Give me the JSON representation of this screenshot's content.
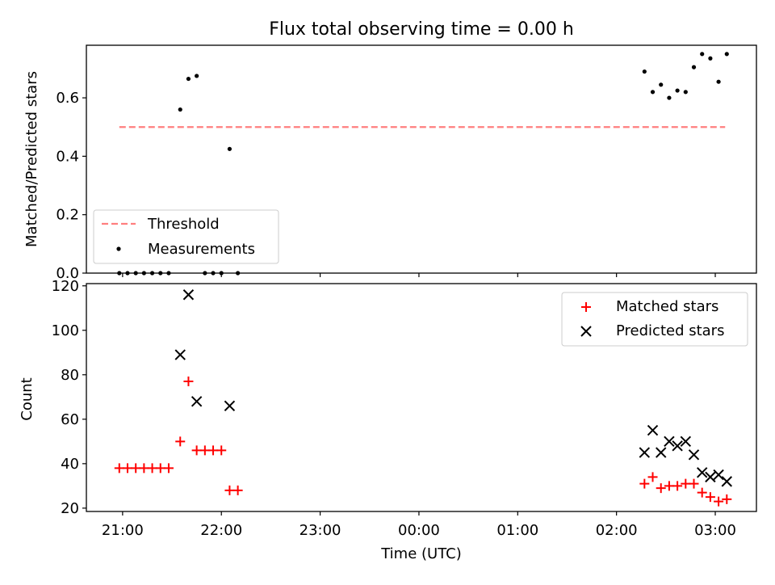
{
  "chart_data": [
    {
      "type": "scatter",
      "title": "Flux total observing time = 0.00 h",
      "xlabel": "",
      "ylabel": "Matched/Predicted stars",
      "ylim": [
        0,
        0.78
      ],
      "yticks": [
        "0.0",
        "0.2",
        "0.4",
        "0.6"
      ],
      "ytick_values": [
        0,
        0.2,
        0.4,
        0.6
      ],
      "threshold": {
        "name": "Threshold",
        "value": 0.5,
        "x_start": "20:58",
        "x_end": "03:06",
        "color": "#ff7f7f"
      },
      "series": [
        {
          "name": "Measurements",
          "color": "#000000",
          "points": [
            [
              "20:58",
              0
            ],
            [
              "21:03",
              0
            ],
            [
              "21:08",
              0
            ],
            [
              "21:13",
              0
            ],
            [
              "21:18",
              0
            ],
            [
              "21:23",
              0
            ],
            [
              "21:28",
              0
            ],
            [
              "21:35",
              0.56
            ],
            [
              "21:40",
              0.665
            ],
            [
              "21:45",
              0.675
            ],
            [
              "21:50",
              0
            ],
            [
              "21:55",
              0
            ],
            [
              "22:00",
              0
            ],
            [
              "22:05",
              0.425
            ],
            [
              "22:10",
              0
            ],
            [
              "02:17",
              0.69
            ],
            [
              "02:22",
              0.62
            ],
            [
              "02:27",
              0.645
            ],
            [
              "02:32",
              0.6
            ],
            [
              "02:37",
              0.625
            ],
            [
              "02:42",
              0.62
            ],
            [
              "02:47",
              0.705
            ],
            [
              "02:52",
              0.75
            ],
            [
              "02:57",
              0.735
            ],
            [
              "03:02",
              0.655
            ],
            [
              "03:07",
              0.75
            ]
          ]
        }
      ],
      "legend": "lower-left"
    },
    {
      "type": "scatter",
      "title": "",
      "xlabel": "Time (UTC)",
      "ylabel": "Count",
      "ylim": [
        18.5,
        121
      ],
      "yticks": [
        "20",
        "40",
        "60",
        "80",
        "100",
        "120"
      ],
      "ytick_values": [
        20,
        40,
        60,
        80,
        100,
        120
      ],
      "xticks": [
        "21:00",
        "22:00",
        "23:00",
        "00:00",
        "01:00",
        "02:00",
        "03:00"
      ],
      "x_axis_start": "20:38",
      "x_axis_end": "03:25",
      "series": [
        {
          "name": "Matched stars",
          "color": "#ff0000",
          "marker": "+",
          "points": [
            [
              "20:58",
              38
            ],
            [
              "21:03",
              38
            ],
            [
              "21:08",
              38
            ],
            [
              "21:13",
              38
            ],
            [
              "21:18",
              38
            ],
            [
              "21:23",
              38
            ],
            [
              "21:28",
              38
            ],
            [
              "21:35",
              50
            ],
            [
              "21:40",
              77
            ],
            [
              "21:45",
              46
            ],
            [
              "21:50",
              46
            ],
            [
              "21:55",
              46
            ],
            [
              "22:00",
              46
            ],
            [
              "22:05",
              28
            ],
            [
              "22:10",
              28
            ],
            [
              "02:17",
              31
            ],
            [
              "02:22",
              34
            ],
            [
              "02:27",
              29
            ],
            [
              "02:32",
              30
            ],
            [
              "02:37",
              30
            ],
            [
              "02:42",
              31
            ],
            [
              "02:47",
              31
            ],
            [
              "02:52",
              27
            ],
            [
              "02:57",
              25
            ],
            [
              "03:02",
              23
            ],
            [
              "03:07",
              24
            ]
          ]
        },
        {
          "name": "Predicted stars",
          "color": "#000000",
          "marker": "x",
          "points": [
            [
              "21:35",
              89
            ],
            [
              "21:40",
              116
            ],
            [
              "21:45",
              68
            ],
            [
              "22:05",
              66
            ],
            [
              "02:17",
              45
            ],
            [
              "02:22",
              55
            ],
            [
              "02:27",
              45
            ],
            [
              "02:32",
              50
            ],
            [
              "02:37",
              48
            ],
            [
              "02:42",
              50
            ],
            [
              "02:47",
              44
            ],
            [
              "02:52",
              36
            ],
            [
              "02:57",
              34
            ],
            [
              "03:02",
              35
            ],
            [
              "03:07",
              32
            ]
          ]
        }
      ],
      "legend": "upper-right"
    }
  ]
}
